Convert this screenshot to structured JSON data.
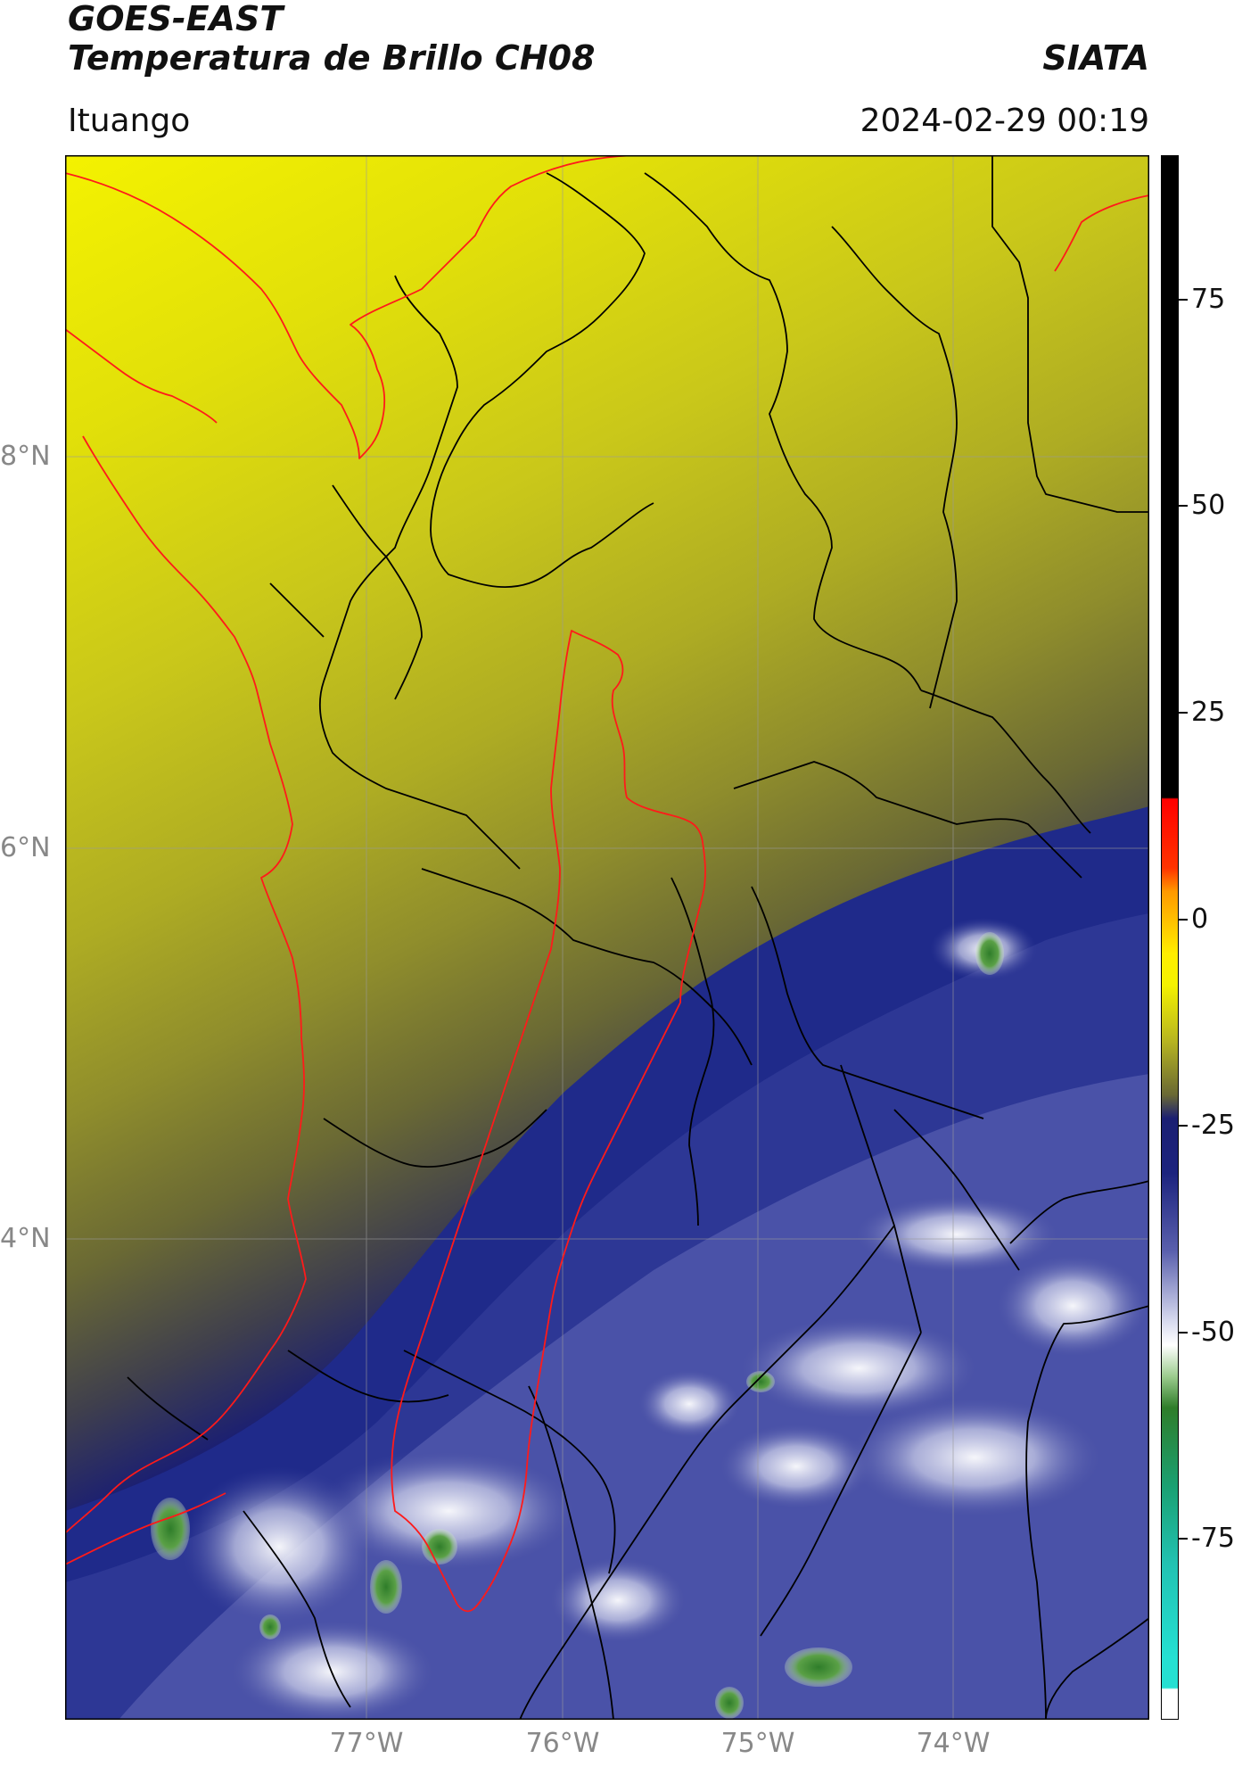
{
  "header": {
    "satellite": "GOES-EAST",
    "product": "Temperatura de Brillo CH08",
    "organization": "SIATA",
    "location": "Ituango",
    "datetime": "2024-02-29 00:19"
  },
  "map": {
    "longitude_ticks": [
      "77°W",
      "76°W",
      "75°W",
      "74°W"
    ],
    "latitude_ticks": [
      "8°N",
      "6°N",
      "4°N"
    ],
    "extent": {
      "lon_min": -78.55,
      "lon_max": -73.0,
      "lat_min": 1.6,
      "lat_max": 9.55
    },
    "colors": {
      "department_borders": "#000000",
      "coast_and_basin_outline": "#ff1a1a",
      "gridlines": "#9a9a9a"
    }
  },
  "colorbar": {
    "tick_labels": [
      "75",
      "50",
      "25",
      "0",
      "-25",
      "-50",
      "-75"
    ],
    "tick_values": [
      75,
      50,
      25,
      0,
      -25,
      -50,
      -75
    ],
    "range": [
      -93,
      90
    ]
  }
}
